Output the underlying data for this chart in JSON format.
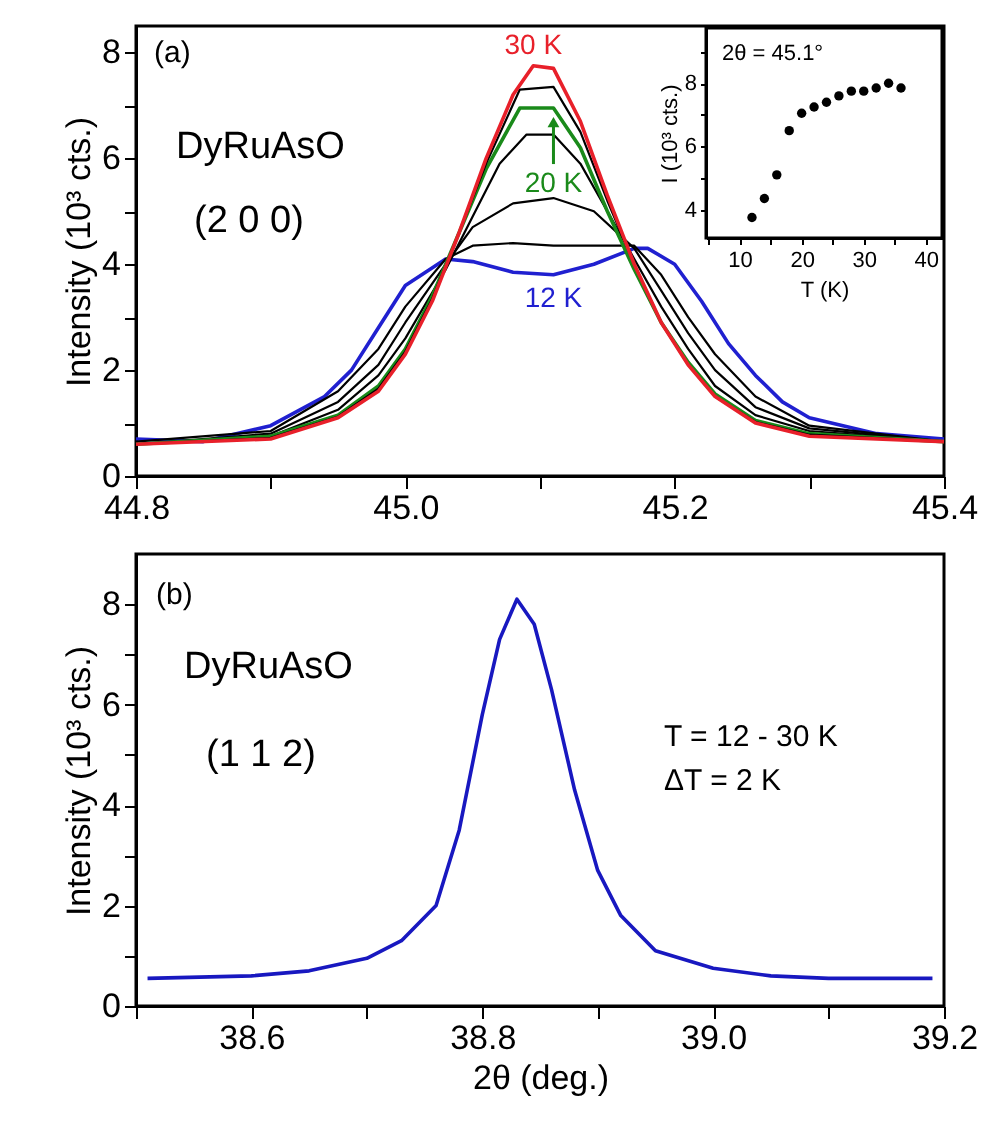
{
  "chart_data": [
    {
      "type": "line",
      "ylabel": "Intensity (10³ cts.)",
      "annotations": [
        "(a)",
        "DyRuAsO",
        "(2 0 0)"
      ],
      "xlim": [
        44.8,
        45.4
      ],
      "xticks": [
        44.8,
        {
          "value": 44.9,
          "label": null
        },
        {
          "value": 45,
          "label": "45.0"
        },
        {
          "value": 45.1,
          "label": null
        },
        45.2,
        {
          "value": 45.3,
          "label": null
        },
        45.4
      ],
      "ylim": [
        0,
        8.5
      ],
      "yticks": [
        0,
        {
          "value": 1,
          "label": null
        },
        2,
        {
          "value": 3,
          "label": null
        },
        4,
        {
          "value": 5,
          "label": null
        },
        6,
        {
          "value": 7,
          "label": null
        },
        8
      ],
      "series": [
        {
          "name": "12 K",
          "color": "#2020d0",
          "x": [
            44.8,
            44.85,
            44.9,
            44.94,
            44.96,
            44.98,
            45.0,
            45.03,
            45.05,
            45.08,
            45.11,
            45.14,
            45.17,
            45.18,
            45.2,
            45.22,
            45.24,
            45.26,
            45.28,
            45.3,
            45.35,
            45.4
          ],
          "values": [
            0.7,
            0.65,
            0.95,
            1.5,
            2.0,
            2.8,
            3.6,
            4.1,
            4.05,
            3.85,
            3.8,
            4.0,
            4.3,
            4.3,
            4.0,
            3.3,
            2.5,
            1.9,
            1.4,
            1.1,
            0.8,
            0.7
          ]
        },
        {
          "color": "#000000",
          "x": [
            44.8,
            44.9,
            44.95,
            44.98,
            45.0,
            45.03,
            45.05,
            45.08,
            45.11,
            45.14,
            45.17,
            45.19,
            45.21,
            45.23,
            45.26,
            45.3,
            45.4
          ],
          "values": [
            0.65,
            0.85,
            1.6,
            2.4,
            3.2,
            4.1,
            4.35,
            4.4,
            4.35,
            4.35,
            4.35,
            3.8,
            3.0,
            2.3,
            1.5,
            0.95,
            0.65
          ]
        },
        {
          "color": "#000000",
          "x": [
            44.8,
            44.9,
            44.95,
            44.98,
            45.0,
            45.03,
            45.05,
            45.08,
            45.11,
            45.14,
            45.17,
            45.19,
            45.21,
            45.23,
            45.26,
            45.3,
            45.4
          ],
          "values": [
            0.6,
            0.8,
            1.4,
            2.1,
            2.9,
            4.0,
            4.7,
            5.15,
            5.25,
            5.0,
            4.3,
            3.5,
            2.7,
            2.0,
            1.3,
            0.9,
            0.65
          ]
        },
        {
          "color": "#000000",
          "x": [
            44.8,
            44.9,
            44.95,
            44.98,
            45.0,
            45.03,
            45.05,
            45.07,
            45.09,
            45.11,
            45.13,
            45.15,
            45.17,
            45.19,
            45.21,
            45.23,
            45.26,
            45.3,
            45.4
          ],
          "values": [
            0.6,
            0.75,
            1.25,
            1.9,
            2.6,
            3.9,
            4.9,
            5.9,
            6.45,
            6.45,
            5.9,
            5.0,
            4.1,
            3.2,
            2.4,
            1.7,
            1.15,
            0.85,
            0.65
          ]
        },
        {
          "name": "20 K",
          "color": "#1a8a1a",
          "x": [
            44.8,
            44.9,
            44.95,
            44.98,
            45.0,
            45.02,
            45.04,
            45.06,
            45.085,
            45.11,
            45.13,
            45.15,
            45.17,
            45.19,
            45.21,
            45.23,
            45.26,
            45.3,
            45.4
          ],
          "values": [
            0.6,
            0.75,
            1.15,
            1.7,
            2.4,
            3.4,
            4.6,
            5.8,
            6.95,
            6.95,
            6.2,
            5.0,
            3.9,
            2.9,
            2.15,
            1.55,
            1.05,
            0.8,
            0.65
          ]
        },
        {
          "color": "#000000",
          "x": [
            44.8,
            44.9,
            44.95,
            44.98,
            45.0,
            45.02,
            45.04,
            45.06,
            45.085,
            45.11,
            45.13,
            45.15,
            45.17,
            45.19,
            45.21,
            45.23,
            45.26,
            45.3,
            45.4
          ],
          "values": [
            0.6,
            0.72,
            1.12,
            1.65,
            2.35,
            3.35,
            4.6,
            5.9,
            7.3,
            7.35,
            6.5,
            5.2,
            4.0,
            2.9,
            2.1,
            1.5,
            1.02,
            0.78,
            0.65
          ]
        },
        {
          "name": "30 K",
          "color": "#e8202a",
          "x": [
            44.8,
            44.9,
            44.95,
            44.98,
            45.0,
            45.02,
            45.04,
            45.06,
            45.08,
            45.095,
            45.11,
            45.13,
            45.15,
            45.17,
            45.19,
            45.21,
            45.23,
            45.26,
            45.3,
            45.4
          ],
          "values": [
            0.6,
            0.7,
            1.1,
            1.6,
            2.3,
            3.3,
            4.6,
            6.0,
            7.2,
            7.75,
            7.7,
            6.7,
            5.3,
            4.0,
            2.9,
            2.1,
            1.5,
            1.0,
            0.75,
            0.65
          ]
        }
      ]
    },
    {
      "type": "scatter",
      "marker": "circle",
      "xlabel": "T (K)",
      "ylabel": "I (10³ cts.)",
      "annotations": [
        "2θ = 45.1°"
      ],
      "xlim": [
        4.6,
        42.6
      ],
      "xticks": [
        {
          "value": 5,
          "label": null
        },
        10,
        {
          "value": 15,
          "label": null
        },
        20,
        {
          "value": 25,
          "label": null
        },
        30,
        {
          "value": 35,
          "label": null
        },
        40
      ],
      "ylim": [
        3.1,
        9.75
      ],
      "yticks": [
        4,
        {
          "value": 5,
          "label": null
        },
        6,
        {
          "value": 7,
          "label": null
        },
        8,
        {
          "value": 9,
          "label": null
        }
      ],
      "series": [
        {
          "color": "#000000",
          "x": [
            12,
            14,
            16,
            18,
            20,
            22,
            24,
            26,
            28,
            30,
            32,
            34,
            36
          ],
          "values": [
            3.75,
            4.35,
            5.1,
            6.5,
            7.05,
            7.25,
            7.4,
            7.6,
            7.75,
            7.75,
            7.85,
            8.0,
            7.85
          ]
        }
      ]
    },
    {
      "type": "line",
      "xlabel": "2θ (deg.)",
      "ylabel": "Intensity (10³ cts.)",
      "annotations": [
        "(b)",
        "DyRuAsO",
        "(1 1 2)",
        "T = 12 - 30 K",
        "ΔT = 2 K"
      ],
      "xlim": [
        38.5,
        39.2
      ],
      "xticks": [
        {
          "value": 38.5,
          "label": null
        },
        38.6,
        {
          "value": 38.7,
          "label": null
        },
        38.8,
        {
          "value": 38.9,
          "label": null
        },
        {
          "value": 39,
          "label": "39.0"
        },
        {
          "value": 39.1,
          "label": null
        },
        39.2
      ],
      "ylim": [
        0,
        9
      ],
      "yticks": [
        0,
        {
          "value": 1,
          "label": null
        },
        2,
        {
          "value": 3,
          "label": null
        },
        4,
        {
          "value": 5,
          "label": null
        },
        6,
        {
          "value": 7,
          "label": null
        },
        8
      ],
      "series": [
        {
          "color": "#1818c0",
          "x": [
            38.51,
            38.6,
            38.65,
            38.7,
            38.73,
            38.76,
            38.78,
            38.8,
            38.815,
            38.83,
            38.845,
            38.86,
            38.88,
            38.9,
            38.92,
            38.95,
            39.0,
            39.05,
            39.1,
            39.19
          ],
          "values": [
            0.55,
            0.6,
            0.7,
            0.95,
            1.3,
            2.0,
            3.5,
            5.8,
            7.3,
            8.1,
            7.6,
            6.3,
            4.3,
            2.7,
            1.8,
            1.1,
            0.75,
            0.6,
            0.55,
            0.55
          ]
        }
      ]
    }
  ]
}
